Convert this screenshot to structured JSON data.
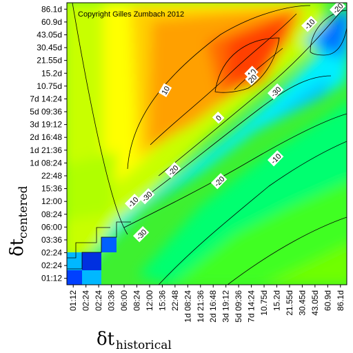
{
  "chart_data": {
    "type": "heatmap",
    "copyright": "Copyright Gilles Zumbach 2012",
    "x_axis": {
      "symbol": "δt",
      "subscript": "historical"
    },
    "y_axis": {
      "symbol": "δt",
      "subscript": "centered"
    },
    "tick_labels": [
      "01:12",
      "02:24",
      "02:24",
      "03:36",
      "06:00",
      "08:24",
      "12:00",
      "15:36",
      "22:48",
      "1d 08:24",
      "1d 21:36",
      "2d 16:48",
      "3d 19:12",
      "5d 09:36",
      "7d 14:24",
      "10.75d",
      "15.2d",
      "21.55d",
      "30.45d",
      "43.05d",
      "60.9d",
      "86.1d"
    ],
    "contour_labels": [
      "10",
      "0",
      "-10",
      "-20",
      "-30",
      "10",
      "20",
      "-10",
      "-20",
      "-30",
      "-10",
      "-20",
      "-30",
      "-20",
      "-10"
    ],
    "color_scale": [
      "#0000cc",
      "#0070ff",
      "#00ffff",
      "#00ff90",
      "#70ff00",
      "#ffff00",
      "#ffa000",
      "#ff3000"
    ]
  }
}
